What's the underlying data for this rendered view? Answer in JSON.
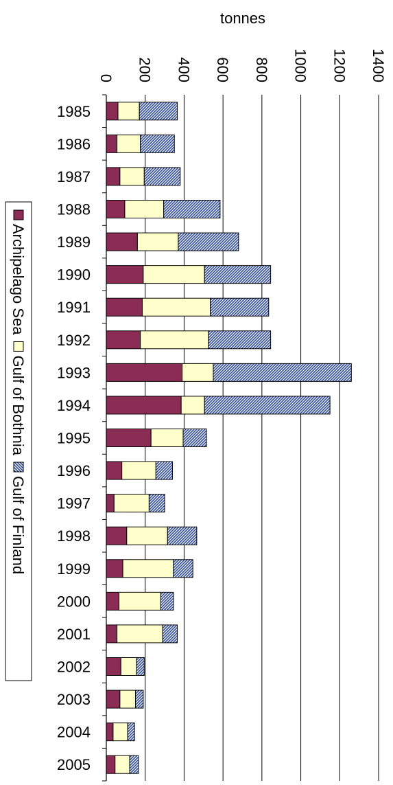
{
  "chart_data": {
    "type": "bar",
    "orientation": "horizontal",
    "stacked": true,
    "xlabel": "tonnes",
    "xlim": [
      0,
      1400
    ],
    "xticks": [
      0,
      200,
      400,
      600,
      800,
      1000,
      1200,
      1400
    ],
    "grid": true,
    "legend_position": "left",
    "categories": [
      "1985",
      "1986",
      "1987",
      "1988",
      "1989",
      "1990",
      "1991",
      "1992",
      "1993",
      "1994",
      "1995",
      "1996",
      "1997",
      "1998",
      "1999",
      "2000",
      "2001",
      "2002",
      "2003",
      "2004",
      "2005"
    ],
    "series": [
      {
        "name": "Archipelago Sea",
        "color": "#8b2c55",
        "pattern": "solid",
        "values": [
          60,
          55,
          70,
          95,
          160,
          190,
          185,
          175,
          390,
          385,
          230,
          80,
          40,
          105,
          85,
          65,
          55,
          75,
          70,
          35,
          45
        ]
      },
      {
        "name": "Gulf of Bothnia",
        "color": "#ffffcc",
        "pattern": "solid",
        "values": [
          110,
          120,
          125,
          200,
          210,
          315,
          350,
          350,
          160,
          120,
          165,
          175,
          180,
          210,
          260,
          215,
          235,
          80,
          80,
          75,
          75
        ]
      },
      {
        "name": "Gulf  of Finland",
        "color": "#2e4a9e",
        "pattern": "hatch",
        "values": [
          195,
          175,
          185,
          290,
          310,
          340,
          300,
          320,
          710,
          645,
          120,
          85,
          80,
          150,
          100,
          65,
          75,
          40,
          40,
          35,
          45
        ]
      }
    ]
  }
}
